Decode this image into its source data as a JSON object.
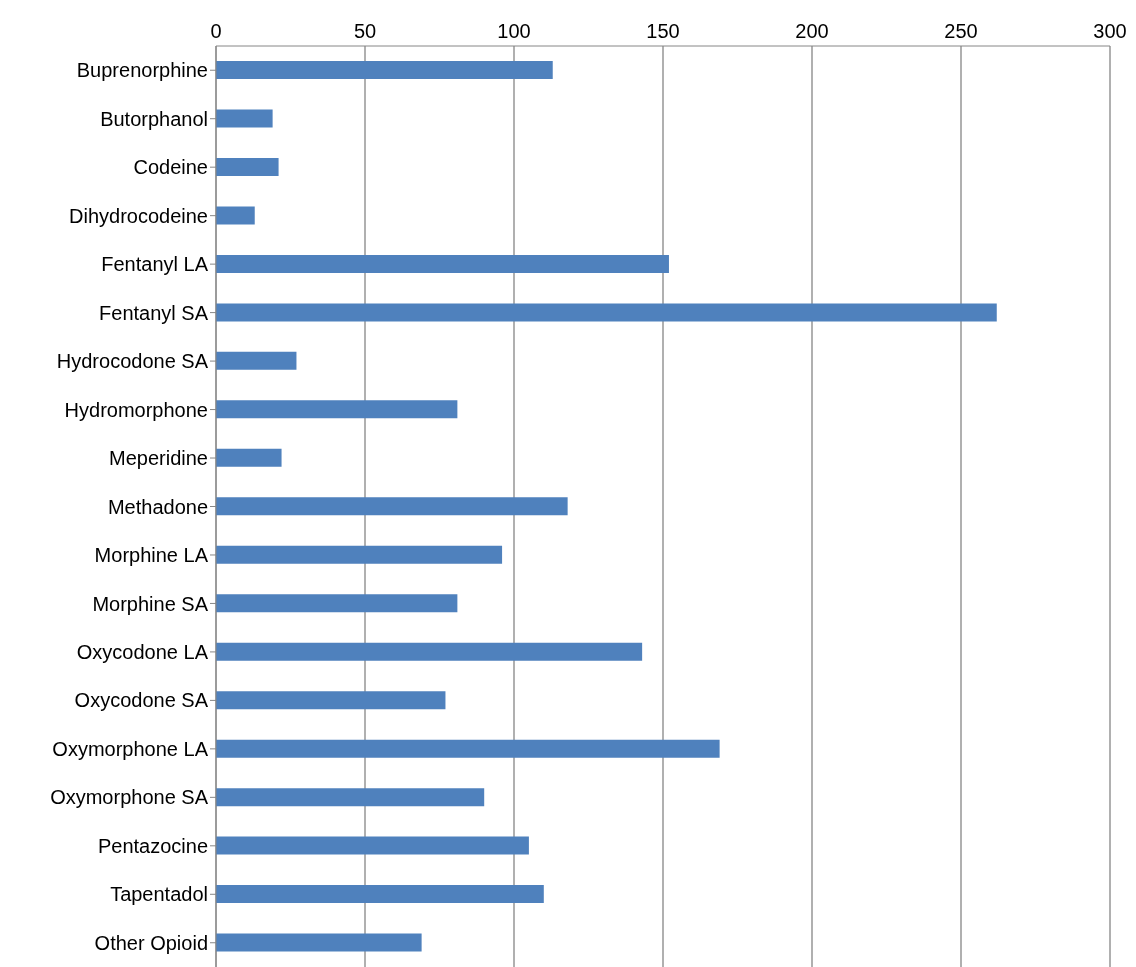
{
  "chart_data": {
    "type": "bar",
    "orientation": "horizontal",
    "categories": [
      "Buprenorphine",
      "Butorphanol",
      "Codeine",
      "Dihydrocodeine",
      "Fentanyl LA",
      "Fentanyl SA",
      "Hydrocodone SA",
      "Hydromorphone",
      "Meperidine",
      "Methadone",
      "Morphine LA",
      "Morphine SA",
      "Oxycodone LA",
      "Oxycodone SA",
      "Oxymorphone LA",
      "Oxymorphone SA",
      "Pentazocine",
      "Tapentadol",
      "Other Opioid"
    ],
    "values": [
      113,
      19,
      21,
      13,
      152,
      262,
      27,
      81,
      22,
      118,
      96,
      81,
      143,
      77,
      169,
      90,
      105,
      110,
      69
    ],
    "color": "#4f81bd",
    "xlim": [
      0,
      300
    ],
    "xticks": [
      0,
      50,
      100,
      150,
      200,
      250,
      300
    ],
    "grid": "x"
  }
}
